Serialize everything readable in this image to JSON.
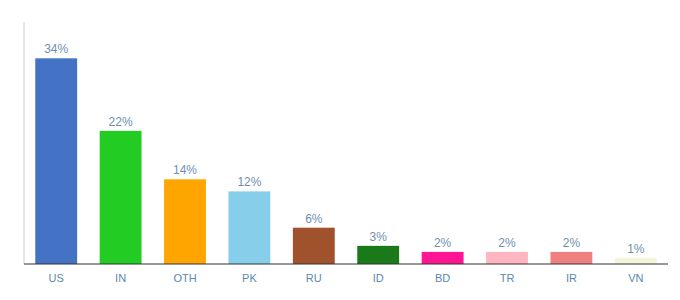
{
  "chart_data": {
    "type": "bar",
    "categories": [
      "US",
      "IN",
      "OTH",
      "PK",
      "RU",
      "ID",
      "BD",
      "TR",
      "IR",
      "VN"
    ],
    "values": [
      34,
      22,
      14,
      12,
      6,
      3,
      2,
      2,
      2,
      1
    ],
    "value_labels": [
      "34%",
      "22%",
      "14%",
      "12%",
      "6%",
      "3%",
      "2%",
      "2%",
      "2%",
      "1%"
    ],
    "colors": [
      "#4472C4",
      "#22CC22",
      "#FFA500",
      "#87CEEB",
      "#A0522D",
      "#1A7A1A",
      "#FF1493",
      "#FFB6C1",
      "#F08080",
      "#F5F5DC"
    ],
    "ylim": [
      0,
      40
    ],
    "data_labels": true,
    "tick_labels": "x",
    "grid": false
  }
}
